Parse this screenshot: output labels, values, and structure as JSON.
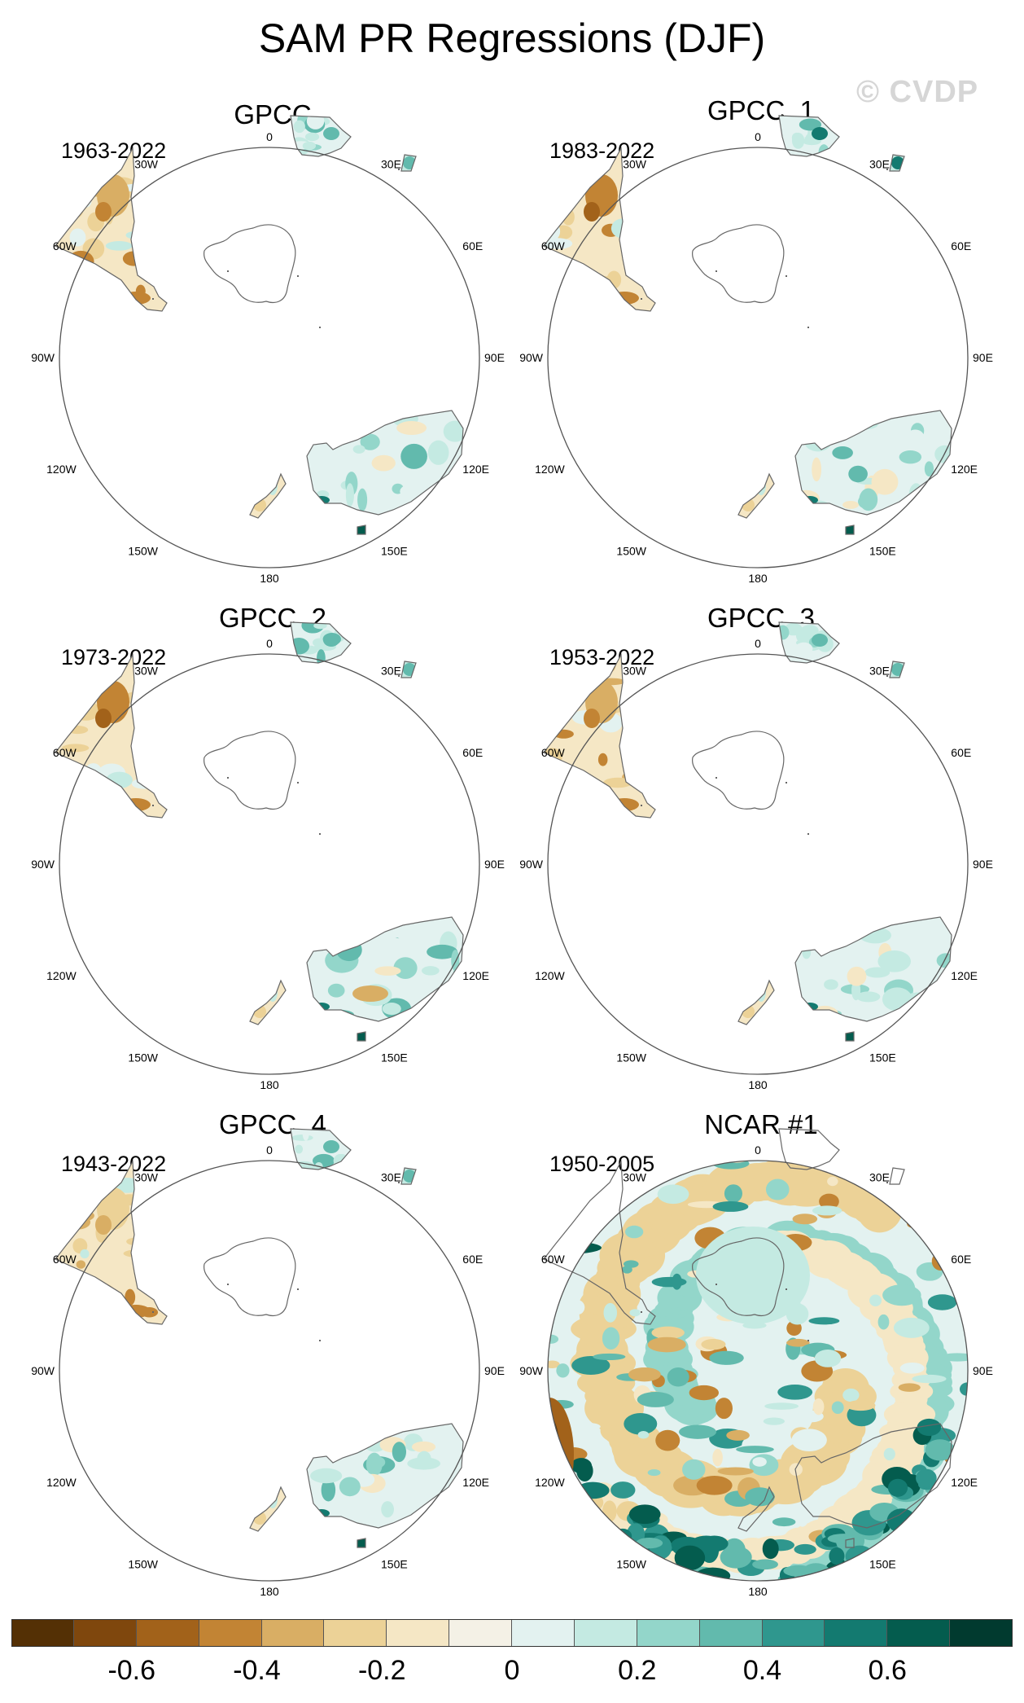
{
  "figure": {
    "title": "SAM PR Regressions (DJF)",
    "watermark": "© CVDP"
  },
  "lon_labels": [
    "0",
    "30E",
    "60E",
    "90E",
    "120E",
    "150E",
    "180",
    "150W",
    "120W",
    "90W",
    "60W",
    "30W"
  ],
  "panels": [
    {
      "title": "GPCC",
      "years": "1963-2022",
      "coverage": "land-only"
    },
    {
      "title": "GPCC_1",
      "years": "1983-2022",
      "coverage": "land-only"
    },
    {
      "title": "GPCC_2",
      "years": "1973-2022",
      "coverage": "land-only"
    },
    {
      "title": "GPCC_3",
      "years": "1953-2022",
      "coverage": "land-only"
    },
    {
      "title": "GPCC_4",
      "years": "1943-2022",
      "coverage": "land-only"
    },
    {
      "title": "NCAR #1",
      "years": "1950-2005",
      "coverage": "global"
    }
  ],
  "colorbar": {
    "colors": [
      "#543005",
      "#7f470d",
      "#a2621a",
      "#c28434",
      "#d9ae64",
      "#ecd297",
      "#f5e7c5",
      "#f4f1e6",
      "#e3f2f0",
      "#c4eae2",
      "#93d6ca",
      "#62baad",
      "#2f978e",
      "#137a70",
      "#045c4e",
      "#013a2f"
    ],
    "labels": [
      "-0.6",
      "-0.4",
      "-0.2",
      "0",
      "0.2",
      "0.4",
      "0.6"
    ],
    "label_boundaries": [
      2,
      4,
      6,
      8,
      10,
      12,
      14
    ]
  }
}
